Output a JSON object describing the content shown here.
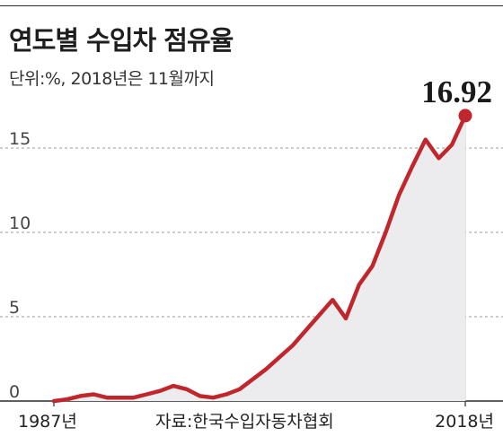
{
  "header": {
    "title": "연도별 수입차 점유율",
    "subtitle": "단위:%, 2018년은 11월까지"
  },
  "source": "자료:한국수입자동차협회",
  "colors": {
    "line": "#c0272d",
    "area": "#ececee",
    "grid": "#9a9a9a",
    "rule": "#2b2b2b"
  },
  "chart_data": {
    "type": "area",
    "title": "연도별 수입차 점유율",
    "subtitle": "단위:%, 2018년은 11월까지",
    "x": [
      1987,
      1988,
      1989,
      1990,
      1991,
      1992,
      1993,
      1994,
      1995,
      1996,
      1997,
      1998,
      1999,
      2000,
      2001,
      2002,
      2003,
      2004,
      2005,
      2006,
      2007,
      2008,
      2009,
      2010,
      2011,
      2012,
      2013,
      2014,
      2015,
      2016,
      2017,
      2018
    ],
    "series": [
      {
        "values": [
          0.0,
          0.1,
          0.3,
          0.4,
          0.2,
          0.2,
          0.2,
          0.4,
          0.6,
          0.9,
          0.7,
          0.3,
          0.2,
          0.4,
          0.7,
          1.3,
          1.9,
          2.6,
          3.3,
          4.2,
          5.1,
          6.0,
          4.9,
          6.9,
          8.0,
          10.0,
          12.2,
          13.9,
          15.5,
          14.4,
          15.2,
          16.92
        ]
      }
    ],
    "ytick_labels": [
      "0",
      "5",
      "10",
      "15"
    ],
    "xtick_labels": [
      "1987년",
      "2018년"
    ],
    "ylim": [
      0,
      17.5
    ],
    "end_label": "16.92",
    "grid": "horizontal dashed",
    "legend": "none"
  }
}
